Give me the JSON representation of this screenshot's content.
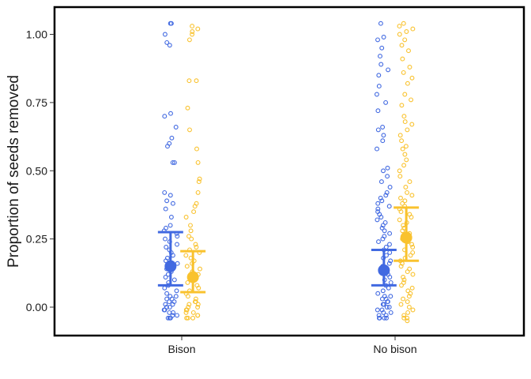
{
  "chart_data": {
    "type": "scatter",
    "subtype": "jittered-dot-plot-with-mean-and-ci",
    "title": "",
    "xlabel": "",
    "ylabel": "Proportion of seeds removed",
    "ylim": [
      -0.1,
      1.1
    ],
    "yticks": [
      0.0,
      0.25,
      0.5,
      0.75,
      1.0
    ],
    "ytick_labels": [
      "0.00",
      "0.25",
      "0.50",
      "0.75",
      "1.00"
    ],
    "categories": [
      "Bison",
      "No bison"
    ],
    "grid": false,
    "legend": "none",
    "series": [
      {
        "color": "#4169E1",
        "offset": -0.12,
        "summary": [
          {
            "category": "Bison",
            "mean": 0.15,
            "lower": 0.08,
            "upper": 0.275
          },
          {
            "category": "No bison",
            "mean": 0.135,
            "lower": 0.08,
            "upper": 0.21
          }
        ]
      },
      {
        "color": "#F9C22E",
        "offset": 0.12,
        "summary": [
          {
            "category": "Bison",
            "mean": 0.11,
            "lower": 0.055,
            "upper": 0.205
          },
          {
            "category": "No bison",
            "mean": 0.255,
            "lower": 0.17,
            "upper": 0.365
          }
        ]
      }
    ],
    "points": [
      {
        "series": 0,
        "category": "Bison",
        "y": [
          1.04,
          1.04,
          1.0,
          0.97,
          0.96,
          0.71,
          0.7,
          0.66,
          0.62,
          0.6,
          0.59,
          0.53,
          0.53,
          0.42,
          0.41,
          0.39,
          0.38,
          0.36,
          0.33,
          0.3,
          0.29,
          0.28,
          0.27,
          0.26,
          0.25,
          0.24,
          0.23,
          0.22,
          0.21,
          0.2,
          0.19,
          0.18,
          0.17,
          0.16,
          0.15,
          0.14,
          0.13,
          0.12,
          0.11,
          0.1,
          0.09,
          0.08,
          0.07,
          0.06,
          0.05,
          0.04,
          0.04,
          0.03,
          0.03,
          0.02,
          0.02,
          0.01,
          0.01,
          0.0,
          0.0,
          -0.01,
          -0.01,
          -0.02,
          -0.02,
          -0.03,
          -0.03,
          -0.04,
          -0.04,
          -0.04
        ]
      },
      {
        "series": 1,
        "category": "Bison",
        "y": [
          1.03,
          1.02,
          1.01,
          1.0,
          0.98,
          0.83,
          0.83,
          0.73,
          0.65,
          0.58,
          0.53,
          0.47,
          0.46,
          0.42,
          0.38,
          0.37,
          0.35,
          0.33,
          0.3,
          0.28,
          0.26,
          0.25,
          0.23,
          0.22,
          0.21,
          0.2,
          0.19,
          0.18,
          0.17,
          0.16,
          0.15,
          0.14,
          0.13,
          0.12,
          0.11,
          0.1,
          0.09,
          0.08,
          0.07,
          0.06,
          0.05,
          0.04,
          0.03,
          0.02,
          0.02,
          0.01,
          0.01,
          0.0,
          0.0,
          -0.01,
          -0.01,
          -0.02,
          -0.02,
          -0.03,
          -0.03,
          -0.04,
          -0.04,
          -0.04
        ]
      },
      {
        "series": 0,
        "category": "No bison",
        "y": [
          1.04,
          0.99,
          0.98,
          0.95,
          0.92,
          0.89,
          0.87,
          0.85,
          0.81,
          0.78,
          0.75,
          0.72,
          0.66,
          0.65,
          0.63,
          0.61,
          0.58,
          0.51,
          0.5,
          0.48,
          0.46,
          0.44,
          0.42,
          0.41,
          0.4,
          0.39,
          0.38,
          0.37,
          0.36,
          0.35,
          0.34,
          0.33,
          0.32,
          0.31,
          0.3,
          0.29,
          0.28,
          0.27,
          0.26,
          0.25,
          0.24,
          0.23,
          0.22,
          0.21,
          0.2,
          0.19,
          0.18,
          0.17,
          0.16,
          0.15,
          0.14,
          0.13,
          0.12,
          0.11,
          0.1,
          0.09,
          0.08,
          0.07,
          0.06,
          0.05,
          0.04,
          0.04,
          0.03,
          0.03,
          0.02,
          0.02,
          0.01,
          0.01,
          0.0,
          0.0,
          -0.01,
          -0.01,
          -0.02,
          -0.02,
          -0.03,
          -0.03,
          -0.04,
          -0.04,
          -0.04,
          -0.04
        ]
      },
      {
        "series": 1,
        "category": "No bison",
        "y": [
          1.04,
          1.03,
          1.02,
          1.01,
          1.0,
          0.98,
          0.96,
          0.94,
          0.91,
          0.88,
          0.86,
          0.84,
          0.82,
          0.78,
          0.76,
          0.74,
          0.7,
          0.68,
          0.67,
          0.65,
          0.63,
          0.61,
          0.59,
          0.58,
          0.56,
          0.54,
          0.52,
          0.5,
          0.48,
          0.46,
          0.44,
          0.42,
          0.41,
          0.4,
          0.39,
          0.38,
          0.37,
          0.36,
          0.35,
          0.34,
          0.33,
          0.32,
          0.31,
          0.3,
          0.29,
          0.28,
          0.27,
          0.26,
          0.25,
          0.24,
          0.23,
          0.22,
          0.21,
          0.2,
          0.19,
          0.18,
          0.17,
          0.16,
          0.15,
          0.14,
          0.13,
          0.12,
          0.11,
          0.1,
          0.09,
          0.08,
          0.07,
          0.06,
          0.05,
          0.04,
          0.03,
          0.02,
          0.01,
          0.0,
          -0.01,
          -0.02,
          -0.03,
          -0.04,
          -0.04,
          -0.05
        ]
      }
    ]
  }
}
